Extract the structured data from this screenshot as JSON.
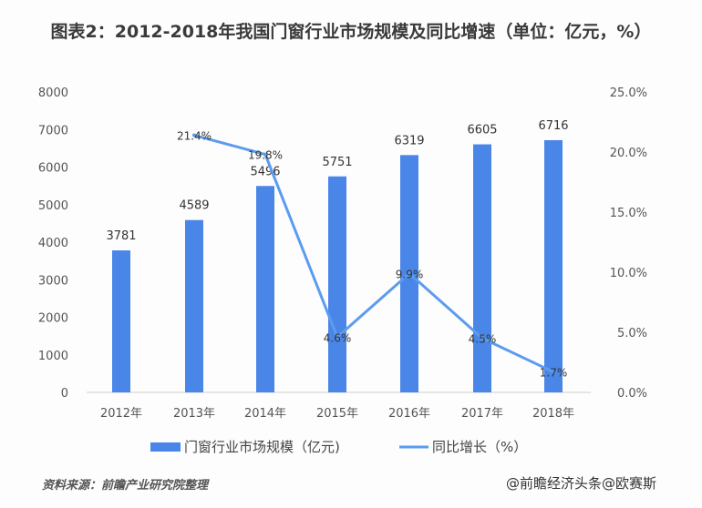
{
  "title": "图表2：2012-2018年我国门窗行业市场规模及同比增速（单位：亿元，%）",
  "source": "资料来源：前瞻产业研究院整理",
  "watermark": "@前瞻经济头条@欧赛斯",
  "chart_data": {
    "type": "bar+line",
    "categories": [
      "2012年",
      "2013年",
      "2014年",
      "2015年",
      "2016年",
      "2017年",
      "2018年"
    ],
    "series": [
      {
        "name": "门窗行业市场规模（亿元)",
        "type": "bar",
        "axis": "left",
        "color": "#4a86e8",
        "values": [
          3781,
          4589,
          5496,
          5751,
          6319,
          6605,
          6716
        ],
        "labels": [
          "3781",
          "4589",
          "5496",
          "5751",
          "6319",
          "6605",
          "6716"
        ]
      },
      {
        "name": "同比增长（%）",
        "type": "line",
        "axis": "right",
        "color": "#5b9bf0",
        "values": [
          null,
          21.4,
          19.8,
          4.6,
          9.9,
          4.5,
          1.7
        ],
        "labels": [
          "",
          "21.4%",
          "19.8%",
          "4.6%",
          "9.9%",
          "4.5%",
          "1.7%"
        ]
      }
    ],
    "y_left": {
      "range": [
        0,
        8000
      ],
      "ticks": [
        "0",
        "1000",
        "2000",
        "3000",
        "4000",
        "5000",
        "6000",
        "7000",
        "8000"
      ]
    },
    "y_right": {
      "range": [
        0,
        25
      ],
      "ticks": [
        "0.0%",
        "5.0%",
        "10.0%",
        "15.0%",
        "20.0%",
        "25.0%"
      ]
    },
    "grid": false,
    "legend": "bottom"
  }
}
